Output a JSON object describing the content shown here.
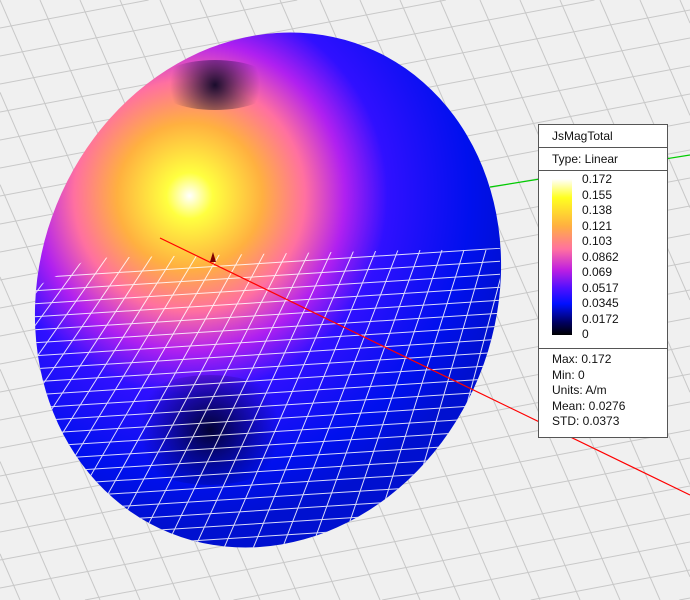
{
  "legend": {
    "title": "JsMagTotal",
    "type": "Type: Linear",
    "ticks": [
      "0.172",
      "0.155",
      "0.138",
      "0.121",
      "0.103",
      "0.0862",
      "0.069",
      "0.0517",
      "0.0345",
      "0.0172",
      "0"
    ],
    "max": "Max: 0.172",
    "min": "Min: 0",
    "units": "Units: A/m",
    "mean": "Mean: 0.0276",
    "std": "STD: 0.0373"
  },
  "colors": {
    "background": "#f0f0f0",
    "x_axis": "#ff0000",
    "y_axis": "#00cc00",
    "colormap": [
      "#000000",
      "#0010ff",
      "#c020e0",
      "#ff70a0",
      "#ffff20",
      "#ffffff"
    ]
  }
}
